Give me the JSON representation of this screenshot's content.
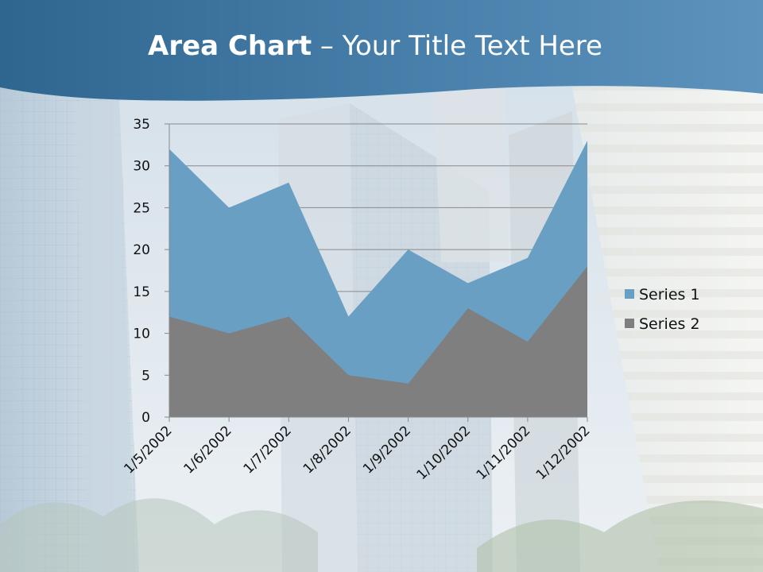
{
  "title": {
    "bold": "Area Chart",
    "rest": " – Your Title Text Here"
  },
  "colors": {
    "header": "#3f7aa6",
    "series1": "#6a9fc4",
    "series2": "#7f7f7f"
  },
  "chart_data": {
    "type": "area",
    "categories": [
      "1/5/2002",
      "1/6/2002",
      "1/7/2002",
      "1/8/2002",
      "1/9/2002",
      "1/10/2002",
      "1/11/2002",
      "1/12/2002"
    ],
    "series": [
      {
        "name": "Series 1",
        "values": [
          32,
          25,
          28,
          12,
          20,
          16,
          19,
          33
        ]
      },
      {
        "name": "Series 2",
        "values": [
          12,
          10,
          12,
          5,
          4,
          13,
          9,
          18
        ]
      }
    ],
    "ylim": [
      0,
      35
    ],
    "yticks": [
      0,
      5,
      10,
      15,
      20,
      25,
      30,
      35
    ],
    "grid": true,
    "legend": "right"
  }
}
